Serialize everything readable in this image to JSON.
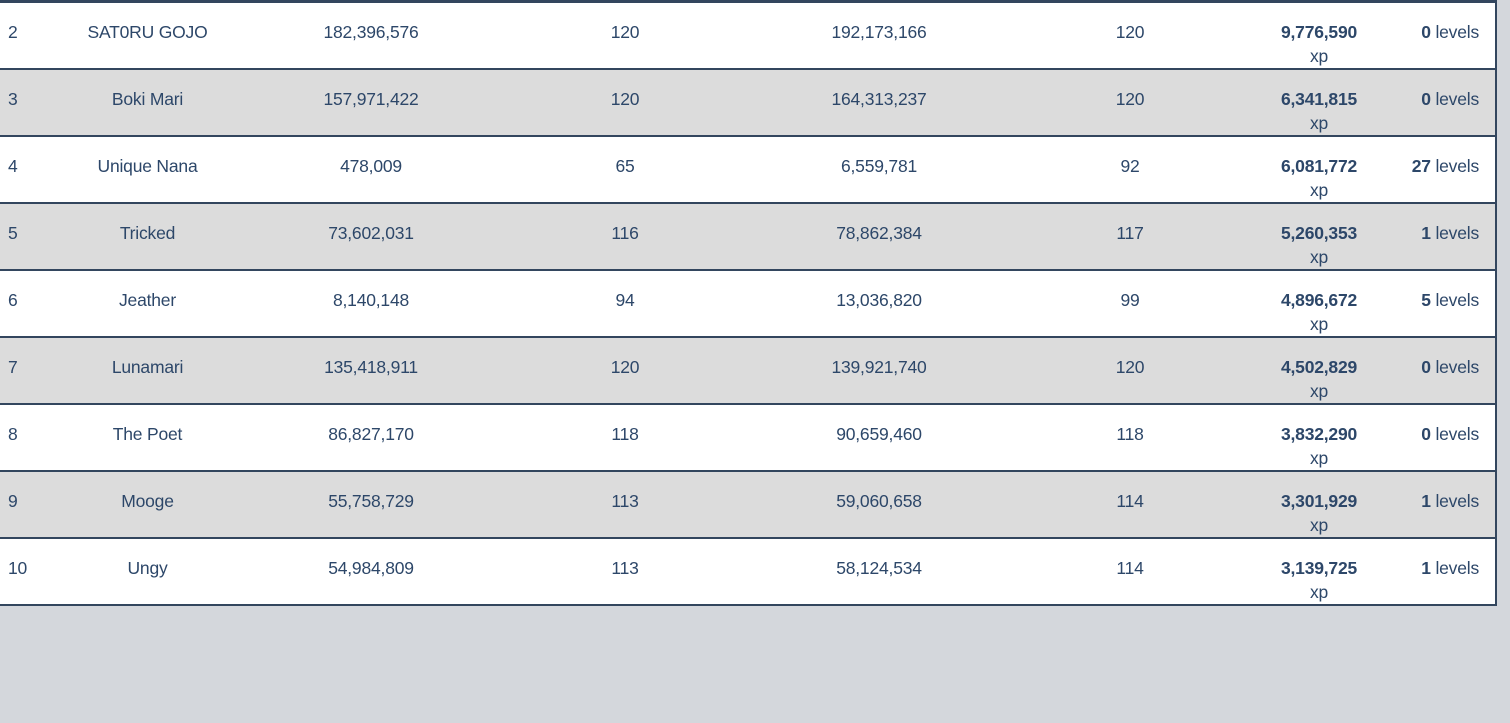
{
  "palette": {
    "text_navy": "#2d4769",
    "border_navy": "#33465e",
    "row_alt_gray": "#dcdcdc",
    "page_background": "#d4d7dc",
    "row_white": "#ffffff"
  },
  "labels": {
    "xp": "xp",
    "levels": "levels"
  },
  "rows": [
    {
      "rank": "2",
      "name": "SAT0RU GOJO",
      "start_xp": "182,396,576",
      "start_level": "120",
      "end_xp": "192,173,166",
      "end_level": "120",
      "gained_xp": "9,776,590",
      "gained_levels": "0"
    },
    {
      "rank": "3",
      "name": "Boki Mari",
      "start_xp": "157,971,422",
      "start_level": "120",
      "end_xp": "164,313,237",
      "end_level": "120",
      "gained_xp": "6,341,815",
      "gained_levels": "0"
    },
    {
      "rank": "4",
      "name": "Unique Nana",
      "start_xp": "478,009",
      "start_level": "65",
      "end_xp": "6,559,781",
      "end_level": "92",
      "gained_xp": "6,081,772",
      "gained_levels": "27"
    },
    {
      "rank": "5",
      "name": "Tricked",
      "start_xp": "73,602,031",
      "start_level": "116",
      "end_xp": "78,862,384",
      "end_level": "117",
      "gained_xp": "5,260,353",
      "gained_levels": "1"
    },
    {
      "rank": "6",
      "name": "Jeather",
      "start_xp": "8,140,148",
      "start_level": "94",
      "end_xp": "13,036,820",
      "end_level": "99",
      "gained_xp": "4,896,672",
      "gained_levels": "5"
    },
    {
      "rank": "7",
      "name": "Lunamari",
      "start_xp": "135,418,911",
      "start_level": "120",
      "end_xp": "139,921,740",
      "end_level": "120",
      "gained_xp": "4,502,829",
      "gained_levels": "0"
    },
    {
      "rank": "8",
      "name": "The Poet",
      "start_xp": "86,827,170",
      "start_level": "118",
      "end_xp": "90,659,460",
      "end_level": "118",
      "gained_xp": "3,832,290",
      "gained_levels": "0"
    },
    {
      "rank": "9",
      "name": "Mooge",
      "start_xp": "55,758,729",
      "start_level": "113",
      "end_xp": "59,060,658",
      "end_level": "114",
      "gained_xp": "3,301,929",
      "gained_levels": "1"
    },
    {
      "rank": "10",
      "name": "Ungy",
      "start_xp": "54,984,809",
      "start_level": "113",
      "end_xp": "58,124,534",
      "end_level": "114",
      "gained_xp": "3,139,725",
      "gained_levels": "1"
    }
  ]
}
